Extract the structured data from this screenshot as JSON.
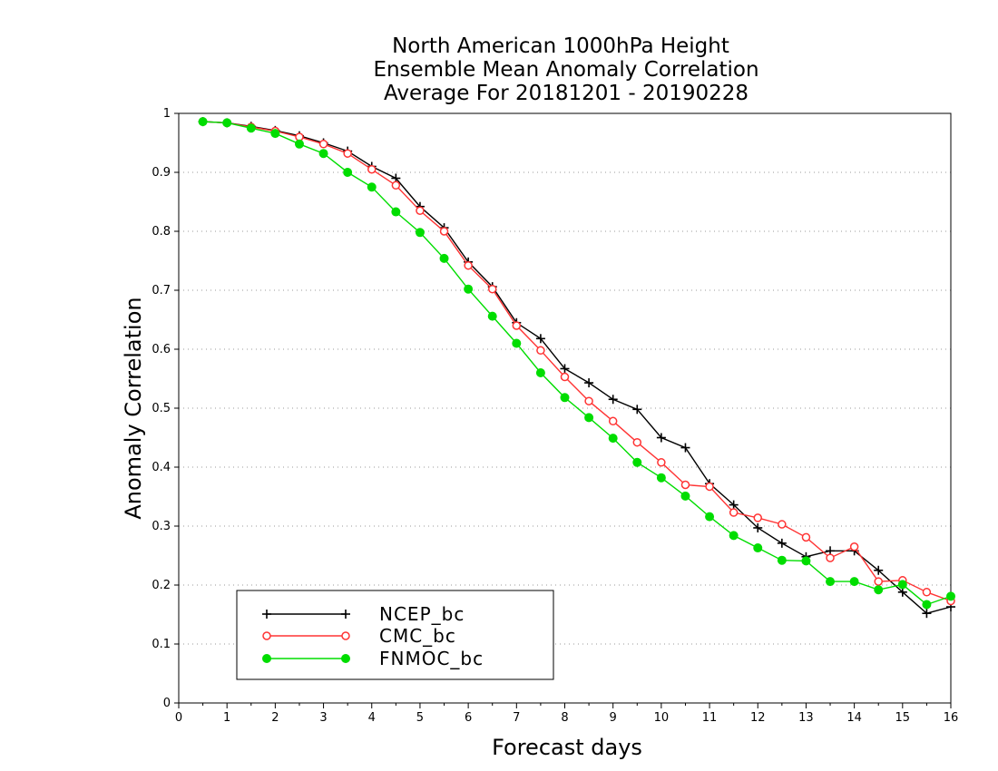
{
  "chart_data": {
    "type": "line",
    "title_lines": [
      "North American 1000hPa Height",
      "Ensemble Mean Anomaly Correlation",
      "Average For 20181201 - 20190228"
    ],
    "xlabel": "Forecast days",
    "ylabel": "Anomaly Correlation",
    "xlim": [
      0,
      16
    ],
    "ylim": [
      0,
      1
    ],
    "x_ticks": [
      0,
      1,
      2,
      3,
      4,
      5,
      6,
      7,
      8,
      9,
      10,
      11,
      12,
      13,
      14,
      15,
      16
    ],
    "x_tick_labels": [
      "0",
      "1",
      "2",
      "3",
      "4",
      "5",
      "6",
      "7",
      "8",
      "9",
      "10",
      "11",
      "12",
      "13",
      "14",
      "15",
      "16"
    ],
    "y_ticks": [
      0,
      0.1,
      0.2,
      0.3,
      0.4,
      0.5,
      0.6,
      0.7,
      0.8,
      0.9,
      1
    ],
    "y_tick_labels": [
      "0",
      "0.1",
      "0.2",
      "0.3",
      "0.4",
      "0.5",
      "0.6",
      "0.7",
      "0.8",
      "0.9",
      "1"
    ],
    "grid": "dotted horizontal",
    "legend_position": "bottom-left",
    "x": [
      0.5,
      1,
      1.5,
      2,
      2.5,
      3,
      3.5,
      4,
      4.5,
      5,
      5.5,
      6,
      6.5,
      7,
      7.5,
      8,
      8.5,
      9,
      9.5,
      10,
      10.5,
      11,
      11.5,
      12,
      12.5,
      13,
      13.5,
      14,
      14.5,
      15,
      15.5,
      16
    ],
    "series": [
      {
        "name": "NCEP_bc",
        "color": "#000000",
        "marker": "plus",
        "values": [
          0.986,
          0.984,
          0.978,
          0.971,
          0.962,
          0.95,
          0.936,
          0.91,
          0.89,
          0.842,
          0.806,
          0.748,
          0.706,
          0.645,
          0.618,
          0.567,
          0.543,
          0.515,
          0.498,
          0.45,
          0.433,
          0.372,
          0.336,
          0.297,
          0.271,
          0.248,
          0.258,
          0.258,
          0.225,
          0.188,
          0.152,
          0.163
        ]
      },
      {
        "name": "CMC_bc",
        "color": "#ff3333",
        "marker": "open-circle",
        "values": [
          0.986,
          0.984,
          0.977,
          0.97,
          0.96,
          0.948,
          0.932,
          0.905,
          0.878,
          0.835,
          0.8,
          0.742,
          0.702,
          0.64,
          0.598,
          0.553,
          0.512,
          0.478,
          0.442,
          0.408,
          0.37,
          0.367,
          0.323,
          0.314,
          0.303,
          0.281,
          0.246,
          0.265,
          0.206,
          0.208,
          0.188,
          0.173
        ]
      },
      {
        "name": "FNMOC_bc",
        "color": "#00dd00",
        "marker": "filled-circle",
        "values": [
          0.986,
          0.984,
          0.975,
          0.966,
          0.948,
          0.932,
          0.9,
          0.875,
          0.833,
          0.798,
          0.754,
          0.702,
          0.656,
          0.61,
          0.56,
          0.518,
          0.484,
          0.449,
          0.408,
          0.382,
          0.351,
          0.316,
          0.284,
          0.263,
          0.242,
          0.241,
          0.206,
          0.206,
          0.192,
          0.201,
          0.167,
          0.181
        ]
      }
    ]
  }
}
